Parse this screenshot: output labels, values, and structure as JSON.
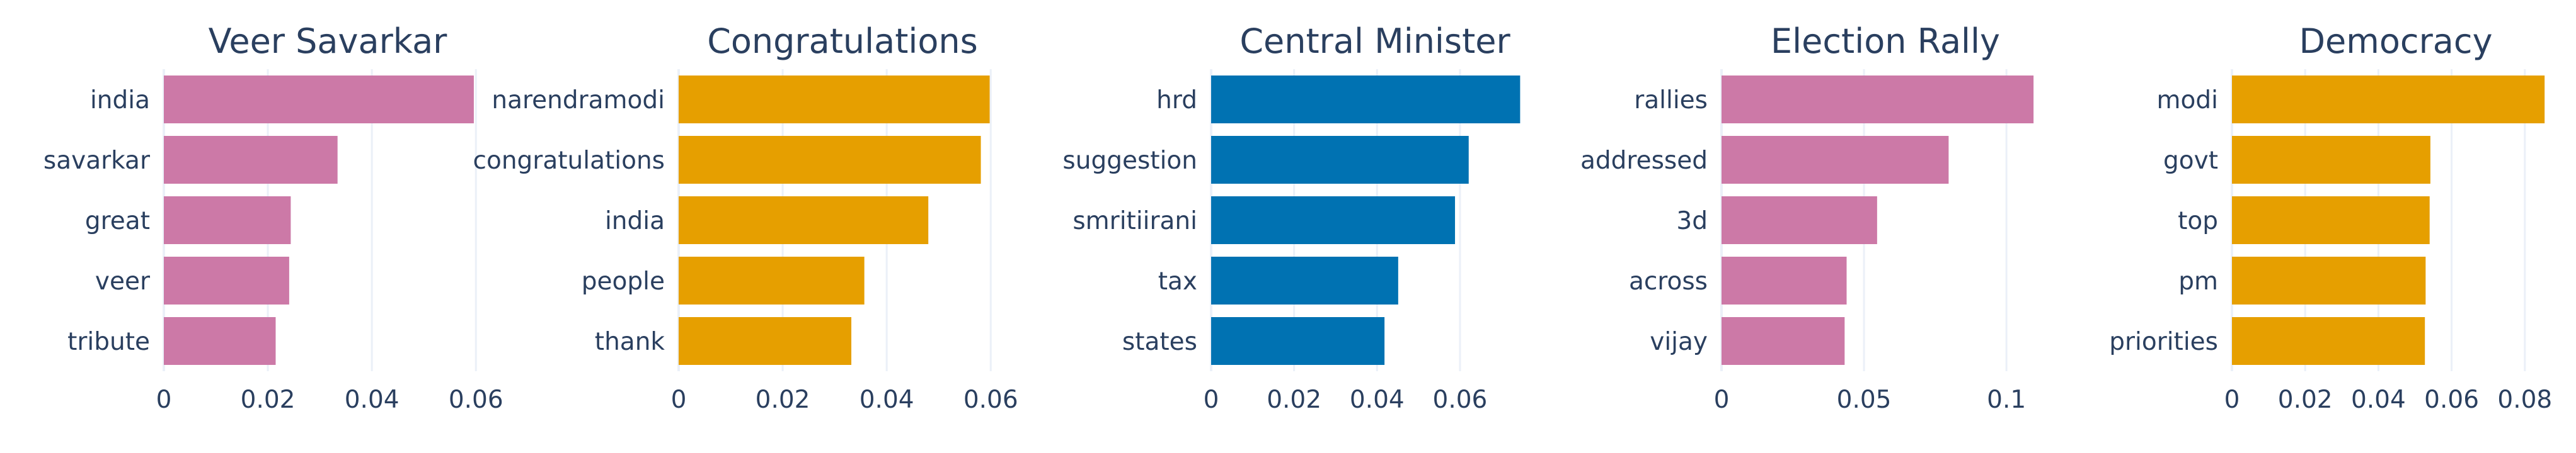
{
  "chart_data": [
    {
      "type": "bar",
      "orientation": "horizontal",
      "title": "Veer Savarkar",
      "categories": [
        "india",
        "savarkar",
        "great",
        "veer",
        "tribute"
      ],
      "values": [
        0.0596,
        0.0334,
        0.0244,
        0.0241,
        0.0215
      ],
      "xlim": [
        0,
        0.063
      ],
      "xticks": [
        0,
        0.02,
        0.04,
        0.06
      ],
      "xtick_labels": [
        "0",
        "0.02",
        "0.04",
        "0.06"
      ],
      "color": "#cc79a7",
      "grid": true
    },
    {
      "type": "bar",
      "orientation": "horizontal",
      "title": "Congratulations",
      "categories": [
        "narendramodi",
        "congratulations",
        "india",
        "people",
        "thank"
      ],
      "values": [
        0.0598,
        0.0581,
        0.048,
        0.0357,
        0.0332
      ],
      "xlim": [
        0,
        0.063
      ],
      "xticks": [
        0,
        0.02,
        0.04,
        0.06
      ],
      "xtick_labels": [
        "0",
        "0.02",
        "0.04",
        "0.06"
      ],
      "color": "#e69f00",
      "grid": true
    },
    {
      "type": "bar",
      "orientation": "horizontal",
      "title": "Central Minister",
      "categories": [
        "hrd",
        "suggestion",
        "smritiirani",
        "tax",
        "states"
      ],
      "values": [
        0.0745,
        0.0621,
        0.0588,
        0.0451,
        0.0418
      ],
      "xlim": [
        0,
        0.079
      ],
      "xticks": [
        0,
        0.02,
        0.04,
        0.06
      ],
      "xtick_labels": [
        "0",
        "0.02",
        "0.04",
        "0.06"
      ],
      "color": "#0072b2",
      "grid": true
    },
    {
      "type": "bar",
      "orientation": "horizontal",
      "title": "Election Rally",
      "categories": [
        "rallies",
        "addressed",
        "3d",
        "across",
        "vijay"
      ],
      "values": [
        0.1095,
        0.0797,
        0.0546,
        0.0439,
        0.0432
      ],
      "xlim": [
        0,
        0.115
      ],
      "xticks": [
        0,
        0.05,
        0.1
      ],
      "xtick_labels": [
        "0",
        "0.05",
        "0.1"
      ],
      "color": "#cc79a7",
      "grid": true
    },
    {
      "type": "bar",
      "orientation": "horizontal",
      "title": "Democracy",
      "categories": [
        "modi",
        "govt",
        "top",
        "pm",
        "priorities"
      ],
      "values": [
        0.0854,
        0.0542,
        0.054,
        0.0529,
        0.0527
      ],
      "xlim": [
        0,
        0.0895
      ],
      "xticks": [
        0,
        0.02,
        0.04,
        0.06,
        0.08
      ],
      "xtick_labels": [
        "0",
        "0.02",
        "0.04",
        "0.06",
        "0.08"
      ],
      "color": "#e69f00",
      "grid": true
    }
  ]
}
